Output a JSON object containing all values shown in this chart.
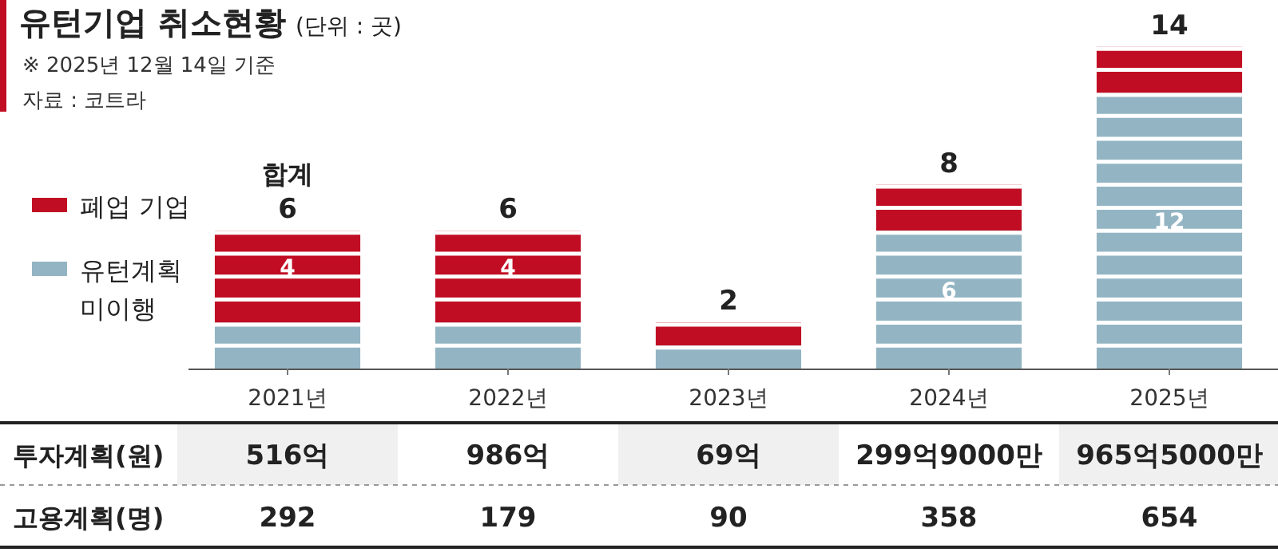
{
  "chart_data": [
    {
      "type": "bar",
      "title": "유턴기업 취소현황",
      "subtitle": "(단위 : 곳)",
      "stacked": true,
      "legend": "left",
      "annotations": [
        "※ 2025년 12월 14일 기준",
        "자료 : 코트라",
        "합계"
      ],
      "categories": [
        "2021년",
        "2022년",
        "2023년",
        "2024년",
        "2025년"
      ],
      "series": [
        {
          "name": "유턴계획 미이행",
          "color": "#93b5c3",
          "values": [
            2,
            2,
            1,
            6,
            12
          ],
          "value_labels": [
            null,
            null,
            null,
            "6",
            "12"
          ]
        },
        {
          "name": "폐업 기업",
          "color": "#c00d23",
          "values": [
            4,
            4,
            1,
            2,
            2
          ],
          "value_labels": [
            "4",
            "4",
            null,
            null,
            null
          ]
        }
      ],
      "totals": [
        "6",
        "6",
        "2",
        "8",
        "14"
      ]
    },
    {
      "type": "other",
      "y_categories": [
        "투자계획(원)",
        "고용계획(명)"
      ],
      "cell_labels": [
        [
          "516억",
          "986억",
          "69억",
          "299억9000만",
          "965억5000만"
        ],
        [
          "292",
          "179",
          "90",
          "358",
          "654"
        ]
      ]
    }
  ]
}
